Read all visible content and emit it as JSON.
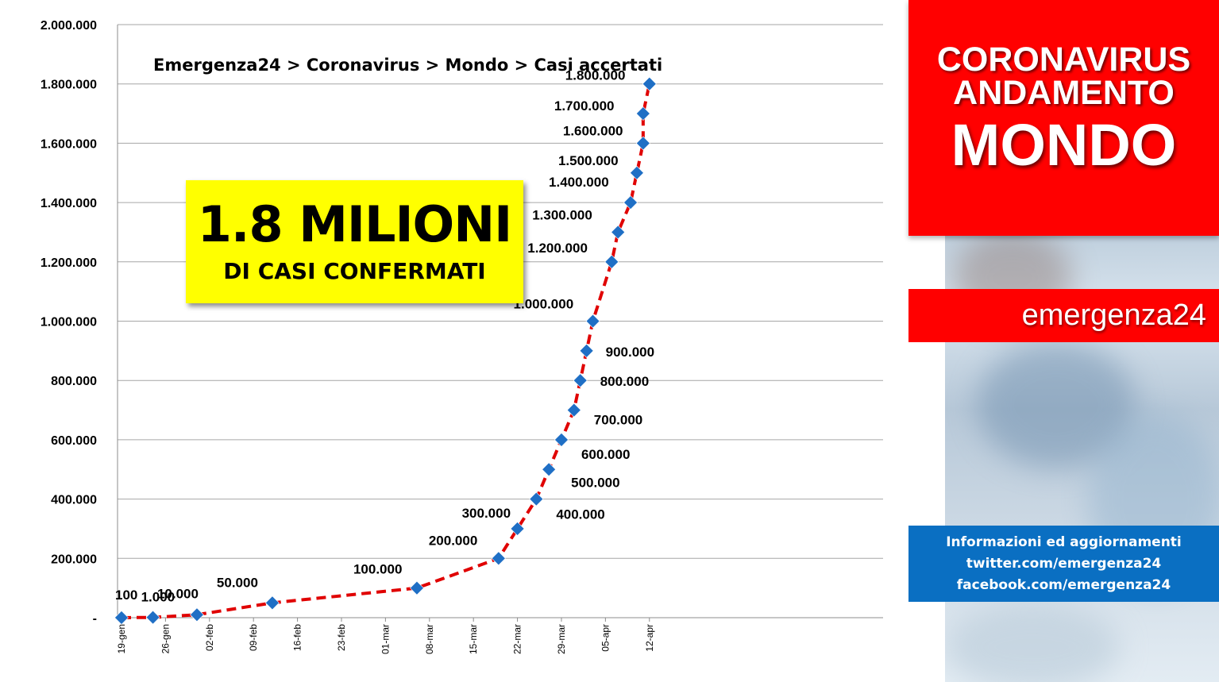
{
  "breadcrumb": "Emergenza24 > Coronavirus >  Mondo > Casi accertati",
  "headline": {
    "main": "1.8 MILIONI",
    "sub": "DI CASI CONFERMATI"
  },
  "title": {
    "line1": "CORONAVIRUS",
    "line2": "ANDAMENTO",
    "line3": "MONDO"
  },
  "brand": "emergenza24",
  "info": {
    "line1": "Informazioni ed aggiornamenti",
    "line2": "twitter.com/emergenza24",
    "line3": "facebook.com/emergenza24"
  },
  "colors": {
    "title_bg": "#ff0000",
    "info_bg": "#0a6fc2",
    "headline_bg": "#ffff00",
    "line": "#e00000",
    "marker": "#1f6fc5",
    "grid": "#a6a6a6"
  },
  "chart_data": {
    "type": "line",
    "title": "Emergenza24 > Coronavirus >  Mondo > Casi accertati",
    "xlabel": "",
    "ylabel": "",
    "x_axis": "date",
    "x_ticks": [
      "19-gen",
      "26-gen",
      "02-feb",
      "09-feb",
      "16-feb",
      "23-feb",
      "01-mar",
      "08-mar",
      "15-mar",
      "22-mar",
      "29-mar",
      "05-apr",
      "12-apr"
    ],
    "y_ticks": [
      "-",
      "200.000",
      "400.000",
      "600.000",
      "800.000",
      "1.000.000",
      "1.200.000",
      "1.400.000",
      "1.600.000",
      "1.800.000",
      "2.000.000"
    ],
    "ylim": [
      0,
      2000000
    ],
    "xlim": [
      "2020-01-19",
      "2020-04-12"
    ],
    "grid": true,
    "legend": "none",
    "series": [
      {
        "line_style": "dashed",
        "marker": "diamond",
        "points": [
          {
            "x": "2020-01-19",
            "y": 100,
            "label": "100"
          },
          {
            "x": "2020-01-24",
            "y": 1000,
            "label": "1.000"
          },
          {
            "x": "2020-01-31",
            "y": 10000,
            "label": "10.000"
          },
          {
            "x": "2020-02-12",
            "y": 50000,
            "label": "50.000"
          },
          {
            "x": "2020-03-06",
            "y": 100000,
            "label": "100.000"
          },
          {
            "x": "2020-03-19",
            "y": 200000,
            "label": "200.000"
          },
          {
            "x": "2020-03-22",
            "y": 300000,
            "label": "300.000"
          },
          {
            "x": "2020-03-25",
            "y": 400000,
            "label": "400.000"
          },
          {
            "x": "2020-03-27",
            "y": 500000,
            "label": "500.000"
          },
          {
            "x": "2020-03-29",
            "y": 600000,
            "label": "600.000"
          },
          {
            "x": "2020-03-31",
            "y": 700000,
            "label": "700.000"
          },
          {
            "x": "2020-04-01",
            "y": 800000,
            "label": "800.000"
          },
          {
            "x": "2020-04-02",
            "y": 900000,
            "label": "900.000"
          },
          {
            "x": "2020-04-03",
            "y": 1000000,
            "label": "1.000.000"
          },
          {
            "x": "2020-04-06",
            "y": 1200000,
            "label": "1.200.000"
          },
          {
            "x": "2020-04-07",
            "y": 1300000,
            "label": "1.300.000"
          },
          {
            "x": "2020-04-09",
            "y": 1400000,
            "label": "1.400.000"
          },
          {
            "x": "2020-04-10",
            "y": 1500000,
            "label": "1.500.000"
          },
          {
            "x": "2020-04-11",
            "y": 1600000,
            "label": "1.600.000"
          },
          {
            "x": "2020-04-11",
            "y": 1700000,
            "label": "1.700.000"
          },
          {
            "x": "2020-04-12",
            "y": 1800000,
            "label": "1.800.000"
          }
        ]
      }
    ]
  }
}
